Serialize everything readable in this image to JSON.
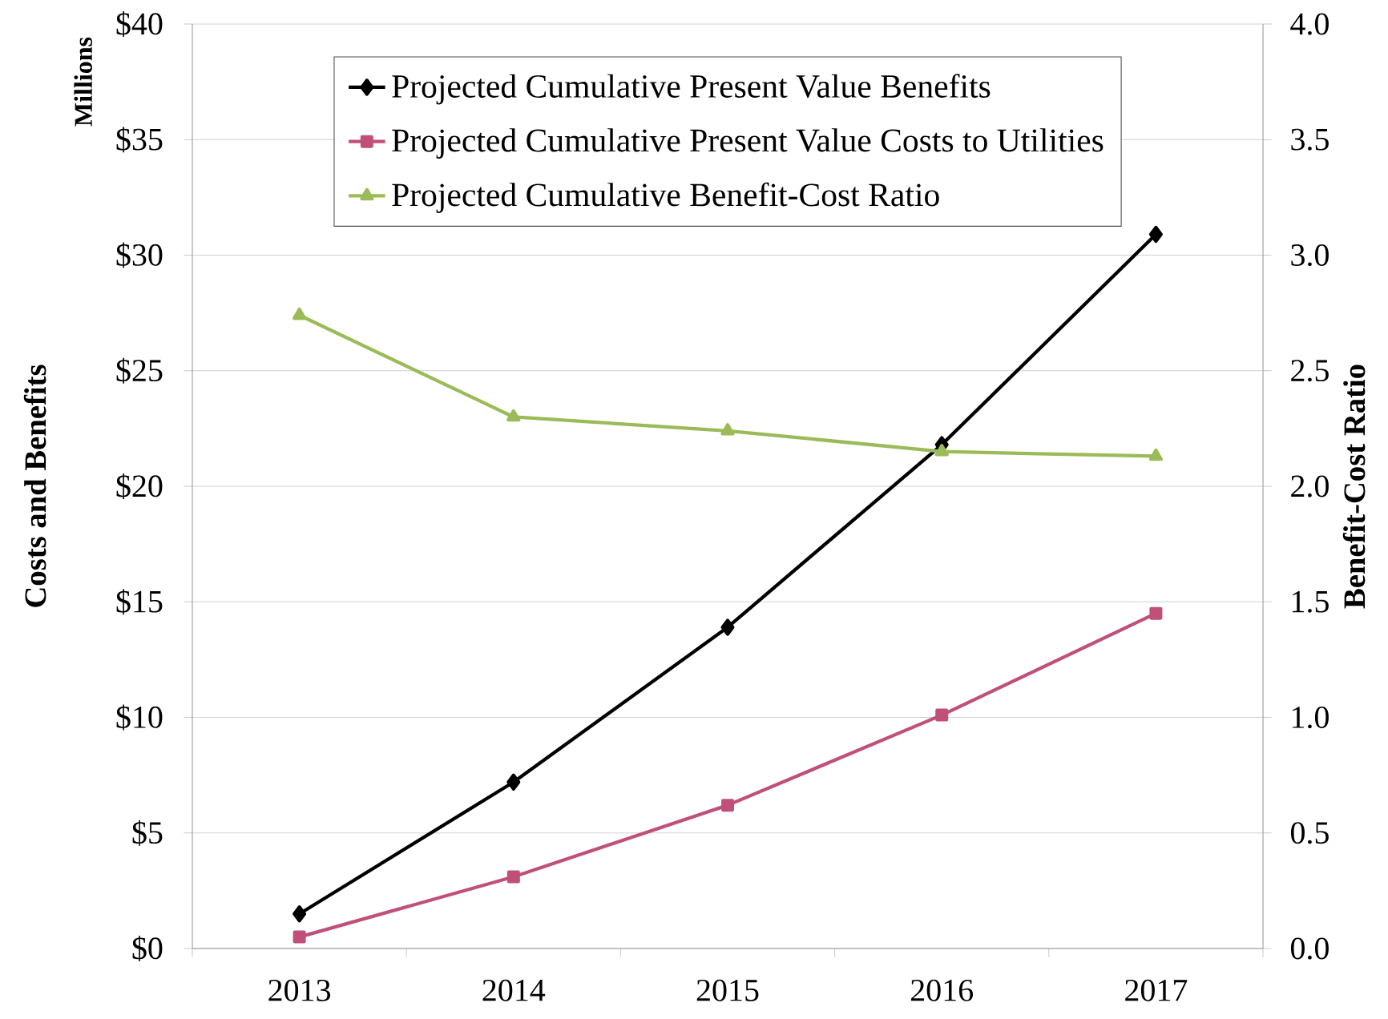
{
  "chart_data": {
    "type": "line",
    "categories": [
      "2013",
      "2014",
      "2015",
      "2016",
      "2017"
    ],
    "ylabel": "Costs and Benefits",
    "y2label": "Benefit-Cost Ratio",
    "annotations": [
      "Millions"
    ],
    "ylim": [
      0,
      40
    ],
    "yticks": [
      {
        "value": 0,
        "label": "$0"
      },
      {
        "value": 5,
        "label": "$5"
      },
      {
        "value": 10,
        "label": "$10"
      },
      {
        "value": 15,
        "label": "$15"
      },
      {
        "value": 20,
        "label": "$20"
      },
      {
        "value": 25,
        "label": "$25"
      },
      {
        "value": 30,
        "label": "$30"
      },
      {
        "value": 35,
        "label": "$35"
      },
      {
        "value": 40,
        "label": "$40"
      }
    ],
    "y2lim": [
      0,
      4
    ],
    "y2ticks": [
      {
        "value": 0,
        "label": "0.0"
      },
      {
        "value": 0.5,
        "label": "0.5"
      },
      {
        "value": 1,
        "label": "1.0"
      },
      {
        "value": 1.5,
        "label": "1.5"
      },
      {
        "value": 2,
        "label": "2.0"
      },
      {
        "value": 2.5,
        "label": "2.5"
      },
      {
        "value": 3,
        "label": "3.0"
      },
      {
        "value": 3.5,
        "label": "3.5"
      },
      {
        "value": 4,
        "label": "4.0"
      }
    ],
    "grid": "y",
    "legend": "top",
    "series": [
      {
        "name": "Projected Cumulative Present Value Benefits",
        "color": "#000000",
        "marker": "diamond",
        "values": [
          1.5,
          7.2,
          13.9,
          21.8,
          30.9
        ]
      },
      {
        "name": "Projected Cumulative Present Value Costs to Utilities",
        "color": "#c0507a",
        "marker": "square",
        "values": [
          0.5,
          3.1,
          6.2,
          10.1,
          14.5
        ]
      },
      {
        "name": "Projected Cumulative Benefit-Cost Ratio",
        "color": "#9bbb59",
        "marker": "triangle",
        "axis": "y2",
        "values": [
          2.74,
          2.3,
          2.24,
          2.15,
          2.13
        ]
      }
    ]
  }
}
